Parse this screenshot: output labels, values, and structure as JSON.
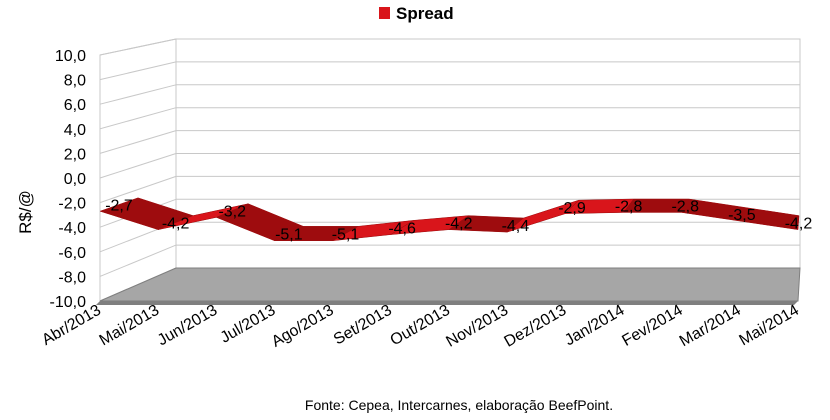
{
  "chart_data": {
    "type": "area",
    "title": "",
    "xlabel": "",
    "ylabel": "R$/@",
    "ylim": [
      -10,
      10
    ],
    "ytick_step": 2,
    "ytick_labels": [
      "-10,0",
      "-8,0",
      "-6,0",
      "-4,0",
      "-2,0",
      "0,0",
      "2,0",
      "4,0",
      "6,0",
      "8,0",
      "10,0"
    ],
    "categories": [
      "Abr/2013",
      "Mai/2013",
      "Jun/2013",
      "Jul/2013",
      "Ago/2013",
      "Set/2013",
      "Out/2013",
      "Nov/2013",
      "Dez/2013",
      "Jan/2014",
      "Fev/2014",
      "Mar/2014",
      "Mai/2014"
    ],
    "series": [
      {
        "name": "Spread",
        "values": [
          -2.7,
          -4.2,
          -3.2,
          -5.1,
          -5.1,
          -4.6,
          -4.2,
          -4.4,
          -2.9,
          -2.8,
          -2.8,
          -3.5,
          -4.2
        ],
        "labels": [
          "-2,7",
          "-4,2",
          "-3,2",
          "-5,1",
          "-5,1",
          "-4,6",
          "-4,2",
          "-4,4",
          "-2,9",
          "-2,8",
          "-2,8",
          "-3,5",
          "-4,2"
        ]
      }
    ],
    "legend_position": "top",
    "grid": true,
    "three_d": true,
    "colors": {
      "series_front": "#d9151b",
      "series_top": "#9e0c0e",
      "floor": "#a6a6a6",
      "floor_edge": "#7f7f7f",
      "grid": "#c8c8c8"
    }
  },
  "footer": {
    "source": "Fonte: Cepea, Intercarnes, elaboração BeefPoint."
  }
}
